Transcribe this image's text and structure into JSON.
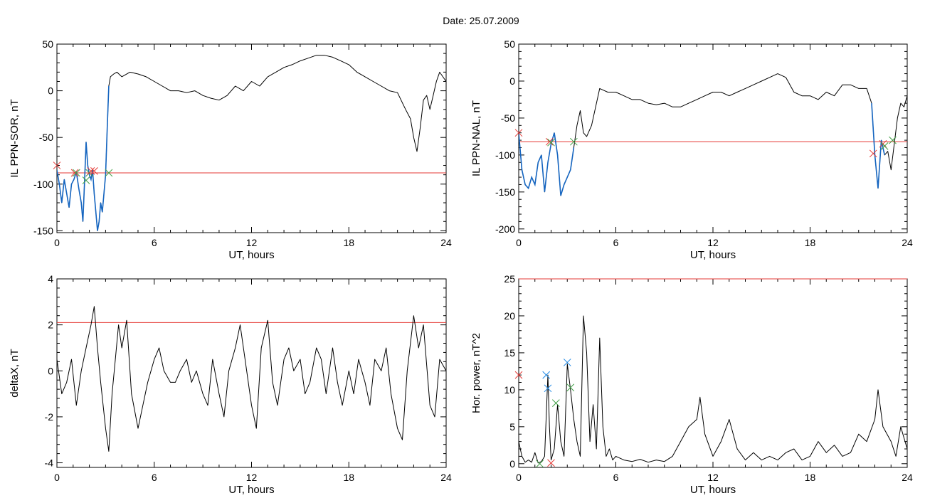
{
  "title": "Date:  25.07.2009",
  "chart_data": [
    {
      "type": "line",
      "xlabel": "UT, hours",
      "ylabel": "IL PPN-SOR, nT",
      "xlim": [
        0,
        24
      ],
      "ylim": [
        -152,
        50
      ],
      "xticks": [
        0,
        6,
        12,
        18,
        24
      ],
      "yticks": [
        -150,
        -100,
        -50,
        0,
        50
      ],
      "threshold": -88,
      "colors": {
        "line": "#000000",
        "highlight": "#1565c0",
        "threshold": "#e53935",
        "marker_red": "#e53935",
        "marker_green": "#43a047",
        "marker_blue": "#1e88e5"
      },
      "series": [
        {
          "x": [
            0,
            0.15,
            0.3,
            0.45,
            0.6,
            0.75,
            0.9,
            1.05,
            1.2,
            1.35,
            1.5,
            1.6,
            1.7,
            1.8,
            1.9,
            2.0,
            2.1,
            2.2,
            2.3,
            2.4,
            2.5,
            2.6,
            2.7,
            2.8,
            2.9,
            3.0,
            3.1,
            3.2,
            3.3,
            3.5,
            3.7,
            4.0,
            4.5,
            5.0,
            5.5,
            6.0,
            6.5,
            7.0,
            7.5,
            8.0,
            8.5,
            9.0,
            9.5,
            10.0,
            10.5,
            11.0,
            11.5,
            12.0,
            12.5,
            13.0,
            13.5,
            14.0,
            14.5,
            15.0,
            15.5,
            16.0,
            16.5,
            17.0,
            17.5,
            18.0,
            18.5,
            19.0,
            19.5,
            20.0,
            20.5,
            21.0,
            21.5,
            21.8,
            22.0,
            22.2,
            22.4,
            22.6,
            22.8,
            23.0,
            23.2,
            23.4,
            23.6,
            23.8,
            24.0
          ],
          "y": [
            -85,
            -100,
            -120,
            -95,
            -110,
            -125,
            -100,
            -95,
            -87,
            -105,
            -120,
            -140,
            -100,
            -55,
            -80,
            -90,
            -95,
            -85,
            -110,
            -130,
            -150,
            -140,
            -120,
            -130,
            -110,
            -90,
            -40,
            5,
            15,
            18,
            20,
            15,
            20,
            18,
            15,
            10,
            5,
            0,
            0,
            -2,
            0,
            -5,
            -8,
            -10,
            -5,
            5,
            0,
            10,
            5,
            15,
            20,
            25,
            28,
            32,
            35,
            38,
            38,
            36,
            32,
            28,
            20,
            15,
            10,
            5,
            0,
            -2,
            -20,
            -30,
            -50,
            -65,
            -40,
            -10,
            -5,
            -20,
            -5,
            10,
            20,
            15,
            10
          ]
        }
      ],
      "highlight_range": [
        0,
        3.2
      ],
      "markers": [
        {
          "x": 0,
          "y": -80,
          "color": "red"
        },
        {
          "x": 1.1,
          "y": -88,
          "color": "red"
        },
        {
          "x": 1.2,
          "y": -88,
          "color": "green"
        },
        {
          "x": 1.8,
          "y": -96,
          "color": "green"
        },
        {
          "x": 2.0,
          "y": -88,
          "color": "green"
        },
        {
          "x": 2.1,
          "y": -86,
          "color": "red"
        },
        {
          "x": 2.3,
          "y": -86,
          "color": "red"
        },
        {
          "x": 3.2,
          "y": -88,
          "color": "green"
        }
      ]
    },
    {
      "type": "line",
      "xlabel": "UT, hours",
      "ylabel": "IL PPN-NAL, nT",
      "xlim": [
        0,
        24
      ],
      "ylim": [
        -205,
        50
      ],
      "xticks": [
        0,
        6,
        12,
        18,
        24
      ],
      "yticks": [
        -200,
        -150,
        -100,
        -50,
        0,
        50
      ],
      "threshold": -82,
      "colors": {
        "line": "#000000",
        "highlight": "#1565c0",
        "threshold": "#e53935",
        "marker_red": "#e53935",
        "marker_green": "#43a047",
        "marker_blue": "#1e88e5"
      },
      "series": [
        {
          "x": [
            0,
            0.2,
            0.4,
            0.6,
            0.8,
            1.0,
            1.2,
            1.4,
            1.6,
            1.8,
            2.0,
            2.2,
            2.4,
            2.6,
            2.8,
            3.0,
            3.2,
            3.4,
            3.6,
            3.8,
            4.0,
            4.2,
            4.5,
            5.0,
            5.5,
            6.0,
            6.5,
            7.0,
            7.5,
            8.0,
            8.5,
            9.0,
            9.5,
            10.0,
            10.5,
            11.0,
            11.5,
            12.0,
            12.5,
            13.0,
            13.5,
            14.0,
            14.5,
            15.0,
            15.5,
            16.0,
            16.5,
            17.0,
            17.5,
            18.0,
            18.5,
            19.0,
            19.5,
            20.0,
            20.5,
            21.0,
            21.5,
            21.8,
            22.0,
            22.2,
            22.4,
            22.6,
            22.8,
            23.0,
            23.2,
            23.4,
            23.6,
            23.8,
            24.0
          ],
          "y": [
            -70,
            -120,
            -140,
            -145,
            -130,
            -140,
            -110,
            -100,
            -150,
            -110,
            -85,
            -70,
            -100,
            -155,
            -140,
            -130,
            -120,
            -90,
            -60,
            -40,
            -70,
            -75,
            -60,
            -10,
            -15,
            -15,
            -20,
            -25,
            -25,
            -30,
            -32,
            -30,
            -35,
            -35,
            -30,
            -25,
            -20,
            -15,
            -15,
            -20,
            -15,
            -10,
            -5,
            0,
            5,
            10,
            5,
            -15,
            -20,
            -20,
            -25,
            -15,
            -20,
            -5,
            -5,
            -10,
            -10,
            -30,
            -100,
            -145,
            -80,
            -100,
            -95,
            -120,
            -85,
            -50,
            -30,
            -35,
            -20
          ]
        }
      ],
      "highlight_range": [
        0,
        3.4
      ],
      "highlight_range_2": [
        21.8,
        22.6
      ],
      "markers": [
        {
          "x": 0,
          "y": -70,
          "color": "red"
        },
        {
          "x": 1.9,
          "y": -82,
          "color": "red"
        },
        {
          "x": 2.0,
          "y": -83,
          "color": "green"
        },
        {
          "x": 3.4,
          "y": -82,
          "color": "green"
        },
        {
          "x": 21.9,
          "y": -98,
          "color": "red"
        },
        {
          "x": 22.5,
          "y": -85,
          "color": "red"
        },
        {
          "x": 22.6,
          "y": -88,
          "color": "green"
        },
        {
          "x": 23.1,
          "y": -80,
          "color": "green"
        }
      ]
    },
    {
      "type": "line",
      "xlabel": "UT, hours",
      "ylabel": "deltaX, nT",
      "xlim": [
        0,
        24
      ],
      "ylim": [
        -4.2,
        4
      ],
      "xticks": [
        0,
        6,
        12,
        18,
        24
      ],
      "yticks": [
        -4,
        -2,
        0,
        2,
        4
      ],
      "threshold": 2.1,
      "colors": {
        "line": "#000000",
        "threshold": "#e53935"
      },
      "series": [
        {
          "x": [
            0,
            0.3,
            0.6,
            0.9,
            1.2,
            1.5,
            1.8,
            2.1,
            2.3,
            2.5,
            2.7,
            3.0,
            3.2,
            3.4,
            3.6,
            3.8,
            4.0,
            4.3,
            4.6,
            5.0,
            5.3,
            5.6,
            6.0,
            6.3,
            6.6,
            7.0,
            7.3,
            7.6,
            8.0,
            8.3,
            8.6,
            9.0,
            9.3,
            9.6,
            10.0,
            10.3,
            10.6,
            11.0,
            11.3,
            11.6,
            12.0,
            12.3,
            12.6,
            13.0,
            13.3,
            13.6,
            14.0,
            14.3,
            14.6,
            15.0,
            15.3,
            15.6,
            16.0,
            16.3,
            16.6,
            17.0,
            17.3,
            17.6,
            18.0,
            18.3,
            18.6,
            19.0,
            19.3,
            19.6,
            20.0,
            20.3,
            20.6,
            21.0,
            21.3,
            21.6,
            22.0,
            22.3,
            22.6,
            23.0,
            23.3,
            23.6,
            24.0
          ],
          "y": [
            0.5,
            -1.0,
            -0.5,
            0.5,
            -1.5,
            0.0,
            1.0,
            2.0,
            2.8,
            1.0,
            -0.5,
            -2.5,
            -3.5,
            -1.0,
            0.5,
            2.0,
            1.0,
            2.2,
            -1.0,
            -2.5,
            -1.5,
            -0.5,
            0.5,
            1.0,
            0.0,
            -0.5,
            -0.5,
            0.0,
            0.5,
            -0.5,
            0.0,
            -1.0,
            -1.5,
            0.5,
            -1.0,
            -2.0,
            0.0,
            1.0,
            2.0,
            0.5,
            -1.5,
            -2.5,
            1.0,
            2.2,
            -0.5,
            -1.5,
            0.5,
            1.0,
            0.0,
            0.5,
            -1.0,
            -0.5,
            1.0,
            0.5,
            -1.0,
            1.0,
            -0.5,
            -1.5,
            0.0,
            -1.0,
            0.5,
            -0.5,
            -1.5,
            0.5,
            0.0,
            1.0,
            -1.0,
            -2.5,
            -3.0,
            0.0,
            2.4,
            1.0,
            2.0,
            -1.5,
            -2.0,
            0.5,
            0.0
          ]
        }
      ]
    },
    {
      "type": "line",
      "xlabel": "UT, hours",
      "ylabel": "Hor. power, nT^2",
      "xlim": [
        0,
        24
      ],
      "ylim": [
        -0.5,
        25
      ],
      "xticks": [
        0,
        6,
        12,
        18,
        24
      ],
      "yticks": [
        0,
        5,
        10,
        15,
        20,
        25
      ],
      "threshold": 25,
      "colors": {
        "line": "#000000",
        "threshold": "#e53935",
        "marker_red": "#e53935",
        "marker_green": "#43a047",
        "marker_blue": "#1e88e5"
      },
      "series": [
        {
          "x": [
            0,
            0.2,
            0.4,
            0.6,
            0.8,
            1.0,
            1.2,
            1.4,
            1.6,
            1.8,
            1.9,
            2.0,
            2.2,
            2.4,
            2.6,
            2.8,
            3.0,
            3.2,
            3.4,
            3.6,
            3.8,
            4.0,
            4.2,
            4.4,
            4.6,
            4.8,
            5.0,
            5.2,
            5.4,
            5.6,
            5.8,
            6.0,
            6.5,
            7.0,
            7.5,
            8.0,
            8.5,
            9.0,
            9.5,
            10.0,
            10.5,
            11.0,
            11.2,
            11.5,
            12.0,
            12.5,
            13.0,
            13.5,
            14.0,
            14.5,
            15.0,
            15.5,
            16.0,
            16.5,
            17.0,
            17.5,
            18.0,
            18.5,
            19.0,
            19.5,
            20.0,
            20.5,
            21.0,
            21.5,
            22.0,
            22.2,
            22.5,
            23.0,
            23.3,
            23.6,
            24.0
          ],
          "y": [
            3,
            1,
            0.2,
            0.5,
            0.2,
            1.5,
            0.1,
            0.3,
            1.0,
            12,
            5,
            0.5,
            2,
            8,
            3,
            1,
            13.5,
            10,
            6,
            3,
            1,
            20,
            15,
            3,
            8,
            2,
            17,
            5,
            1,
            2,
            0.5,
            1,
            0.5,
            0.3,
            0.6,
            0.2,
            0.5,
            0.3,
            1.0,
            3,
            5,
            6,
            9,
            4,
            1,
            3,
            6,
            2,
            0.5,
            1.5,
            0.5,
            1.0,
            0.5,
            1.5,
            2,
            0.5,
            1,
            3,
            1.5,
            2.5,
            1,
            1.5,
            4,
            3,
            6,
            10,
            5,
            3,
            1,
            5,
            2
          ]
        }
      ],
      "markers": [
        {
          "x": 0,
          "y": 12,
          "color": "red"
        },
        {
          "x": 1.3,
          "y": 0,
          "color": "green"
        },
        {
          "x": 1.7,
          "y": 12,
          "color": "blue"
        },
        {
          "x": 1.8,
          "y": 10.2,
          "color": "blue"
        },
        {
          "x": 2.0,
          "y": 0.1,
          "color": "red"
        },
        {
          "x": 2.3,
          "y": 8.2,
          "color": "green"
        },
        {
          "x": 3.0,
          "y": 13.7,
          "color": "blue"
        },
        {
          "x": 3.2,
          "y": 10.3,
          "color": "green"
        }
      ]
    }
  ]
}
